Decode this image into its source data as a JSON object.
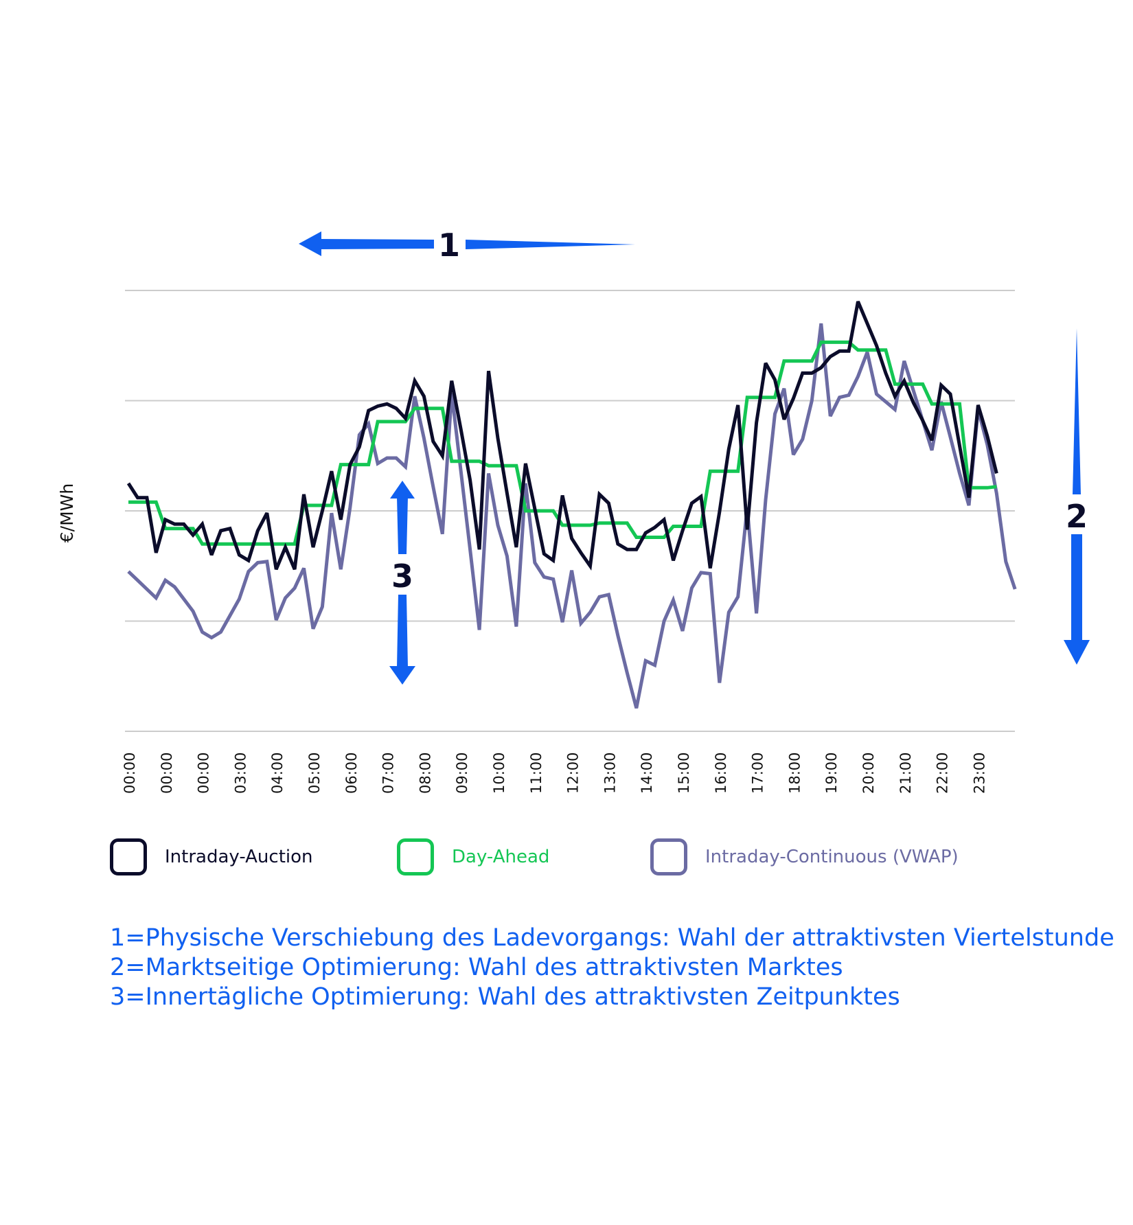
{
  "chart_data": {
    "type": "line",
    "title": "",
    "xlabel": "",
    "ylabel": "€/MWh",
    "x_tick_labels": [
      "00:00",
      "00:00",
      "00:00",
      "03:00",
      "04:00",
      "05:00",
      "06:00",
      "07:00",
      "08:00",
      "09:00",
      "10:00",
      "11:00",
      "12:00",
      "13:00",
      "14:00",
      "15:00",
      "16:00",
      "17:00",
      "18:00",
      "19:00",
      "20:00",
      "21:00",
      "22:00",
      "23:00"
    ],
    "y_tick_labels": [],
    "ylim": [
      0,
      4
    ],
    "grid": true,
    "legend_position": "bottom",
    "series": [
      {
        "name": "Intraday-Auction",
        "color": "#0b0c2a",
        "values": [
          2.25,
          2.12,
          2.12,
          1.62,
          1.92,
          1.88,
          1.88,
          1.78,
          1.88,
          1.6,
          1.82,
          1.84,
          1.6,
          1.55,
          1.82,
          1.98,
          1.47,
          1.67,
          1.47,
          2.15,
          1.67,
          2.0,
          2.36,
          1.92,
          2.42,
          2.58,
          2.91,
          2.95,
          2.97,
          2.93,
          2.84,
          3.18,
          3.04,
          2.63,
          2.5,
          3.18,
          2.74,
          2.28,
          1.65,
          3.27,
          2.66,
          2.16,
          1.67,
          2.43,
          2.02,
          1.61,
          1.55,
          2.14,
          1.75,
          1.62,
          1.5,
          2.15,
          2.07,
          1.7,
          1.65,
          1.65,
          1.8,
          1.85,
          1.92,
          1.55,
          1.82,
          2.07,
          2.13,
          1.48,
          1.99,
          2.56,
          2.96,
          1.83,
          2.8,
          3.34,
          3.19,
          2.83,
          3.02,
          3.25,
          3.25,
          3.3,
          3.4,
          3.45,
          3.45,
          3.9,
          3.7,
          3.5,
          3.25,
          3.04,
          3.18,
          2.98,
          2.82,
          2.64,
          3.14,
          3.06,
          2.59,
          2.12,
          2.96,
          2.68,
          2.34
        ]
      },
      {
        "name": "Day-Ahead",
        "color": "#14c654",
        "values": [
          2.08,
          2.08,
          2.08,
          2.08,
          1.84,
          1.84,
          1.84,
          1.84,
          1.7,
          1.7,
          1.7,
          1.7,
          1.7,
          1.7,
          1.7,
          1.7,
          1.7,
          1.7,
          1.7,
          2.05,
          2.05,
          2.05,
          2.05,
          2.42,
          2.42,
          2.42,
          2.42,
          2.81,
          2.81,
          2.81,
          2.81,
          2.93,
          2.93,
          2.93,
          2.93,
          2.45,
          2.45,
          2.45,
          2.45,
          2.41,
          2.41,
          2.41,
          2.41,
          2.0,
          2.0,
          2.0,
          2.0,
          1.87,
          1.87,
          1.87,
          1.87,
          1.89,
          1.89,
          1.89,
          1.89,
          1.76,
          1.76,
          1.76,
          1.76,
          1.86,
          1.86,
          1.86,
          1.86,
          2.36,
          2.36,
          2.36,
          2.36,
          3.03,
          3.03,
          3.03,
          3.03,
          3.36,
          3.36,
          3.36,
          3.36,
          3.53,
          3.53,
          3.53,
          3.53,
          3.46,
          3.46,
          3.46,
          3.46,
          3.15,
          3.15,
          3.15,
          3.15,
          2.97,
          2.97,
          2.97,
          2.97,
          2.21,
          2.21,
          2.21,
          2.22
        ]
      },
      {
        "name": "Intraday-Continuous (VWAP)",
        "color": "#6b6ba3",
        "values": [
          1.45,
          1.37,
          1.29,
          1.21,
          1.37,
          1.31,
          1.2,
          1.09,
          0.9,
          0.85,
          0.9,
          1.05,
          1.2,
          1.45,
          1.53,
          1.54,
          1.01,
          1.21,
          1.3,
          1.48,
          0.93,
          1.13,
          1.98,
          1.47,
          2.03,
          2.69,
          2.79,
          2.43,
          2.48,
          2.48,
          2.4,
          3.04,
          2.66,
          2.22,
          1.79,
          3.07,
          2.36,
          1.65,
          0.92,
          2.34,
          1.87,
          1.59,
          0.95,
          2.25,
          1.53,
          1.4,
          1.38,
          0.99,
          1.46,
          0.98,
          1.08,
          1.22,
          1.24,
          0.87,
          0.53,
          0.21,
          0.64,
          0.6,
          1.0,
          1.19,
          0.91,
          1.3,
          1.44,
          1.43,
          0.44,
          1.08,
          1.22,
          2.03,
          1.07,
          2.1,
          2.88,
          3.11,
          2.51,
          2.65,
          3.0,
          3.7,
          2.86,
          3.03,
          3.05,
          3.22,
          3.44,
          3.06,
          2.99,
          2.92,
          3.36,
          3.09,
          2.82,
          2.55,
          2.99,
          2.67,
          2.34,
          2.05,
          2.92,
          2.6,
          2.16,
          1.54,
          1.29
        ]
      }
    ]
  },
  "annotations": {
    "a1": "1",
    "a2": "2",
    "a3": "3"
  },
  "accent_color": "#1060f0",
  "legend": [
    {
      "label": "Intraday-Auction",
      "color": "#0b0c2a",
      "text_color": "#0b0c2a"
    },
    {
      "label": "Day-Ahead",
      "color": "#14c654",
      "text_color": "#14c654"
    },
    {
      "label": "Intraday-Continuous (VWAP)",
      "color": "#6b6ba3",
      "text_color": "#6b6ba3"
    }
  ],
  "notes": [
    "1=Physische Verschiebung des Ladevorgangs: Wahl der attraktivsten Viertelstunde",
    "2=Marktseitige Optimierung: Wahl des attraktivsten Marktes",
    "3=Innertägliche Optimierung: Wahl des attraktivsten Zeitpunktes"
  ]
}
